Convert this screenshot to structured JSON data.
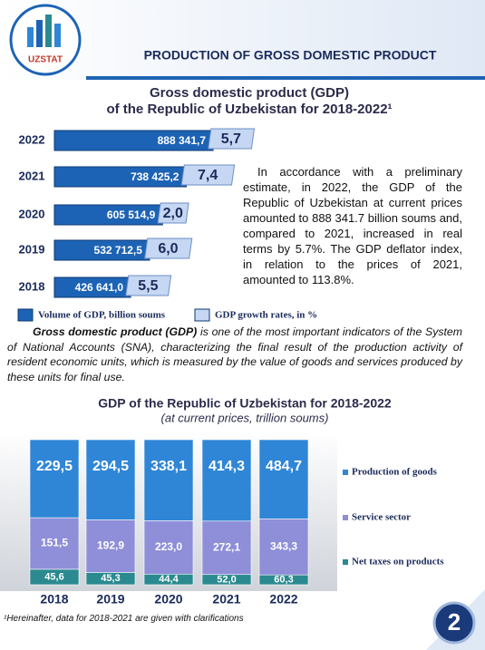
{
  "logo": {
    "text": "UZSTAT"
  },
  "header": {
    "title": "PRODUCTION OF GROSS DOMESTIC PRODUCT"
  },
  "chart_data": [
    {
      "type": "hbar",
      "title": [
        "Gross domestic product (GDP)",
        "of the Republic of Uzbekistan for 2018-2022¹"
      ],
      "categories": [
        "2022",
        "2021",
        "2020",
        "2019",
        "2018"
      ],
      "series": [
        {
          "name": "Volume of GDP, billion soums",
          "color": "#1d63b5",
          "values": [
            888341.7,
            738425.2,
            605514.9,
            532712.5,
            426641.0
          ],
          "value_labels": [
            "888 341,7",
            "738 425,2",
            "605 514,9",
            "532 712,5",
            "426 641,0"
          ]
        },
        {
          "name": "GDP growth rates, in %",
          "color": "#c5d7f2",
          "values": [
            5.7,
            7.4,
            2.0,
            6.0,
            5.5
          ],
          "value_labels": [
            "5,7",
            "7,4",
            "2,0",
            "6,0",
            "5,5"
          ]
        }
      ]
    },
    {
      "type": "stacked-bar-100",
      "title": "GDP of the Republic of Uzbekistan for 2018-2022",
      "subtitle": "(at current prices, trillion soums)",
      "categories": [
        "2018",
        "2019",
        "2020",
        "2021",
        "2022"
      ],
      "series": [
        {
          "name": "Production of goods",
          "color": "#2f86d6",
          "values": [
            229.5,
            294.5,
            338.1,
            414.3,
            484.7
          ],
          "value_labels": [
            "229,5",
            "294,5",
            "338,1",
            "414,3",
            "484,7"
          ]
        },
        {
          "name": "Service sector",
          "color": "#8f8ed8",
          "values": [
            151.5,
            192.9,
            223.0,
            272.1,
            343.3
          ],
          "value_labels": [
            "151,5",
            "192,9",
            "223,0",
            "272,1",
            "343,3"
          ]
        },
        {
          "name": "Net taxes on products",
          "color": "#2a8a8f",
          "values": [
            45.6,
            45.3,
            44.4,
            52.0,
            60.3
          ],
          "value_labels": [
            "45,6",
            "45,3",
            "44,4",
            "52,0",
            "60,3"
          ]
        }
      ]
    }
  ],
  "text": {
    "paragraph": "In accordance with a preliminary estimate, in 2022, the GDP of the Republic of Uzbekistan at current prices amounted to 888 341.7 billion soums and, compared to 2021, increased in real terms by 5.7%. The GDP deflator index, in relation to the prices of 2021, amounted to 113.8%.",
    "definition": {
      "term": "Gross domestic product (GDP)",
      "text": "is one of the most important indicators of the System of National Accounts (SNA), characterizing the final result of the production activity of resident economic units, which is measured by the value of goods and services produced by these units for final use."
    }
  },
  "footnote": "¹Hereinafter, data for 2018-2021 are given with clarifications",
  "page_number": "2"
}
